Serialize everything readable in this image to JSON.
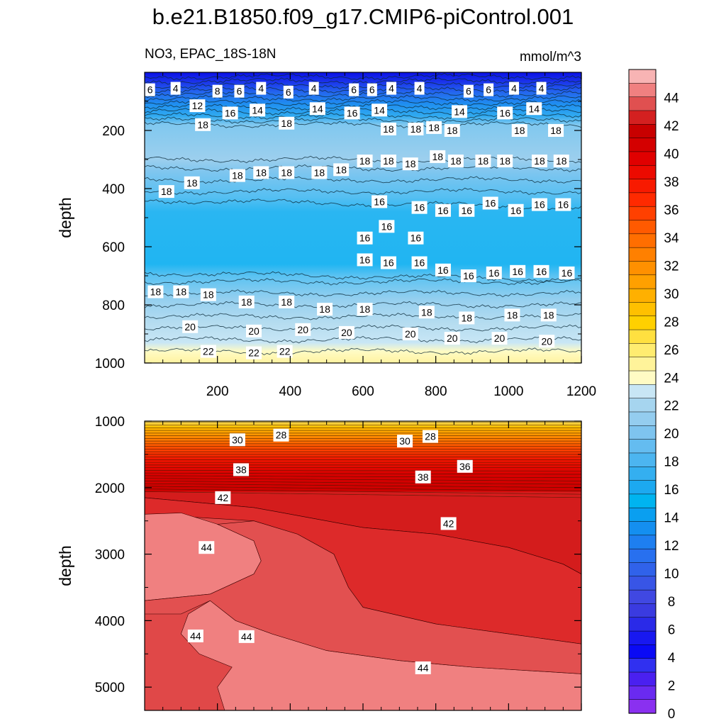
{
  "title": "b.e21.B1850.f09_g17.CMIP6-piControl.001",
  "panel_left_label": "NO3, EPAC_18S-18N",
  "panel_right_label": "mmol/m^3",
  "colors": {
    "deep_blue": "#0a10e6",
    "mid_blue": "#1f8ff0",
    "cyan": "#00b4f0",
    "light_blue": "#46c3f5",
    "pale_blue": "#a6d5ef",
    "yellow_pale": "#fffbc4",
    "orange": "#ffa000",
    "red": "#cc0000",
    "salmon": "#f08080"
  },
  "chart_data": [
    {
      "type": "heatmap",
      "panel": "upper",
      "variable": "NO3",
      "region": "EPAC_18S-18N",
      "units": "mmol/m^3",
      "ylabel": "depth",
      "xlabel": "",
      "xlim": [
        0,
        1200
      ],
      "ylim": [
        0,
        1000
      ],
      "y_inverted": true,
      "xticks": [
        200,
        400,
        600,
        800,
        1000,
        1200
      ],
      "yticks": [
        200,
        400,
        600,
        800,
        1000
      ],
      "layers": [
        {
          "depth_top": 0,
          "depth_bottom": 25,
          "value": 2
        },
        {
          "depth_top": 25,
          "depth_bottom": 60,
          "value": 4
        },
        {
          "depth_top": 60,
          "depth_bottom": 100,
          "value": 8
        },
        {
          "depth_top": 100,
          "depth_bottom": 140,
          "value": 12
        },
        {
          "depth_top": 140,
          "depth_bottom": 175,
          "value": 15
        },
        {
          "depth_top": 175,
          "depth_bottom": 300,
          "value": 18
        },
        {
          "depth_top": 300,
          "depth_bottom": 430,
          "value": 17
        },
        {
          "depth_top": 430,
          "depth_bottom": 670,
          "value": 15
        },
        {
          "depth_top": 670,
          "depth_bottom": 760,
          "value": 17
        },
        {
          "depth_top": 760,
          "depth_bottom": 860,
          "value": 19
        },
        {
          "depth_top": 860,
          "depth_bottom": 940,
          "value": 21
        },
        {
          "depth_top": 940,
          "depth_bottom": 1000,
          "value": 22
        }
      ],
      "contour_labels": [
        {
          "x": 15,
          "depth": 60,
          "text": "6"
        },
        {
          "x": 85,
          "depth": 55,
          "text": "4"
        },
        {
          "x": 200,
          "depth": 65,
          "text": "8"
        },
        {
          "x": 260,
          "depth": 65,
          "text": "6"
        },
        {
          "x": 320,
          "depth": 55,
          "text": "4"
        },
        {
          "x": 395,
          "depth": 68,
          "text": "6"
        },
        {
          "x": 465,
          "depth": 55,
          "text": "4"
        },
        {
          "x": 575,
          "depth": 60,
          "text": "6"
        },
        {
          "x": 625,
          "depth": 60,
          "text": "6"
        },
        {
          "x": 678,
          "depth": 55,
          "text": "4"
        },
        {
          "x": 755,
          "depth": 55,
          "text": "4"
        },
        {
          "x": 890,
          "depth": 65,
          "text": "6"
        },
        {
          "x": 945,
          "depth": 60,
          "text": "6"
        },
        {
          "x": 1015,
          "depth": 55,
          "text": "4"
        },
        {
          "x": 1090,
          "depth": 55,
          "text": "4"
        },
        {
          "x": 145,
          "depth": 115,
          "text": "12"
        },
        {
          "x": 235,
          "depth": 140,
          "text": "16"
        },
        {
          "x": 310,
          "depth": 130,
          "text": "14"
        },
        {
          "x": 475,
          "depth": 125,
          "text": "14"
        },
        {
          "x": 570,
          "depth": 140,
          "text": "16"
        },
        {
          "x": 645,
          "depth": 130,
          "text": "14"
        },
        {
          "x": 865,
          "depth": 135,
          "text": "14"
        },
        {
          "x": 990,
          "depth": 140,
          "text": "16"
        },
        {
          "x": 1070,
          "depth": 125,
          "text": "14"
        },
        {
          "x": 160,
          "depth": 180,
          "text": "18"
        },
        {
          "x": 390,
          "depth": 175,
          "text": "18"
        },
        {
          "x": 670,
          "depth": 195,
          "text": "18"
        },
        {
          "x": 745,
          "depth": 195,
          "text": "18"
        },
        {
          "x": 795,
          "depth": 190,
          "text": "18"
        },
        {
          "x": 845,
          "depth": 200,
          "text": "18"
        },
        {
          "x": 1030,
          "depth": 200,
          "text": "18"
        },
        {
          "x": 1130,
          "depth": 200,
          "text": "18"
        },
        {
          "x": 805,
          "depth": 290,
          "text": "18"
        },
        {
          "x": 855,
          "depth": 305,
          "text": "18"
        },
        {
          "x": 930,
          "depth": 305,
          "text": "18"
        },
        {
          "x": 990,
          "depth": 305,
          "text": "18"
        },
        {
          "x": 1085,
          "depth": 305,
          "text": "18"
        },
        {
          "x": 1145,
          "depth": 305,
          "text": "18"
        },
        {
          "x": 605,
          "depth": 305,
          "text": "18"
        },
        {
          "x": 670,
          "depth": 305,
          "text": "18"
        },
        {
          "x": 730,
          "depth": 315,
          "text": "18"
        },
        {
          "x": 255,
          "depth": 355,
          "text": "18"
        },
        {
          "x": 320,
          "depth": 345,
          "text": "18"
        },
        {
          "x": 390,
          "depth": 345,
          "text": "18"
        },
        {
          "x": 480,
          "depth": 345,
          "text": "18"
        },
        {
          "x": 540,
          "depth": 335,
          "text": "18"
        },
        {
          "x": 130,
          "depth": 380,
          "text": "18"
        },
        {
          "x": 60,
          "depth": 410,
          "text": "18"
        },
        {
          "x": 645,
          "depth": 445,
          "text": "16"
        },
        {
          "x": 755,
          "depth": 465,
          "text": "16"
        },
        {
          "x": 820,
          "depth": 475,
          "text": "16"
        },
        {
          "x": 885,
          "depth": 475,
          "text": "16"
        },
        {
          "x": 950,
          "depth": 450,
          "text": "16"
        },
        {
          "x": 1020,
          "depth": 475,
          "text": "16"
        },
        {
          "x": 1085,
          "depth": 455,
          "text": "16"
        },
        {
          "x": 1150,
          "depth": 455,
          "text": "16"
        },
        {
          "x": 665,
          "depth": 530,
          "text": "16"
        },
        {
          "x": 605,
          "depth": 570,
          "text": "16"
        },
        {
          "x": 745,
          "depth": 570,
          "text": "16"
        },
        {
          "x": 605,
          "depth": 645,
          "text": "16"
        },
        {
          "x": 670,
          "depth": 655,
          "text": "16"
        },
        {
          "x": 755,
          "depth": 655,
          "text": "16"
        },
        {
          "x": 820,
          "depth": 680,
          "text": "16"
        },
        {
          "x": 890,
          "depth": 700,
          "text": "16"
        },
        {
          "x": 960,
          "depth": 690,
          "text": "16"
        },
        {
          "x": 1025,
          "depth": 685,
          "text": "16"
        },
        {
          "x": 1090,
          "depth": 685,
          "text": "16"
        },
        {
          "x": 1160,
          "depth": 690,
          "text": "16"
        },
        {
          "x": 30,
          "depth": 755,
          "text": "18"
        },
        {
          "x": 100,
          "depth": 755,
          "text": "18"
        },
        {
          "x": 175,
          "depth": 765,
          "text": "18"
        },
        {
          "x": 280,
          "depth": 790,
          "text": "18"
        },
        {
          "x": 390,
          "depth": 790,
          "text": "18"
        },
        {
          "x": 495,
          "depth": 815,
          "text": "18"
        },
        {
          "x": 605,
          "depth": 815,
          "text": "18"
        },
        {
          "x": 775,
          "depth": 825,
          "text": "18"
        },
        {
          "x": 885,
          "depth": 845,
          "text": "18"
        },
        {
          "x": 1010,
          "depth": 835,
          "text": "18"
        },
        {
          "x": 1110,
          "depth": 835,
          "text": "18"
        },
        {
          "x": 125,
          "depth": 875,
          "text": "20"
        },
        {
          "x": 300,
          "depth": 890,
          "text": "20"
        },
        {
          "x": 435,
          "depth": 885,
          "text": "20"
        },
        {
          "x": 555,
          "depth": 895,
          "text": "20"
        },
        {
          "x": 730,
          "depth": 900,
          "text": "20"
        },
        {
          "x": 845,
          "depth": 915,
          "text": "20"
        },
        {
          "x": 975,
          "depth": 915,
          "text": "20"
        },
        {
          "x": 1105,
          "depth": 925,
          "text": "20"
        },
        {
          "x": 175,
          "depth": 960,
          "text": "22"
        },
        {
          "x": 300,
          "depth": 965,
          "text": "22"
        },
        {
          "x": 385,
          "depth": 960,
          "text": "22"
        }
      ]
    },
    {
      "type": "heatmap",
      "panel": "lower",
      "variable": "NO3",
      "units": "mmol/m^3",
      "ylabel": "depth",
      "xlabel": "",
      "xlim": [
        0,
        1200
      ],
      "ylim": [
        1000,
        5350
      ],
      "y_inverted": true,
      "yticks": [
        1000,
        2000,
        3000,
        4000,
        5000
      ],
      "layers": [
        {
          "depth_top": 1000,
          "depth_bottom": 1200,
          "value": 25
        },
        {
          "depth_top": 1200,
          "depth_bottom": 1500,
          "value": 30
        },
        {
          "depth_top": 1500,
          "depth_bottom": 1800,
          "value": 36
        },
        {
          "depth_top": 1800,
          "depth_bottom": 2100,
          "value": 40
        },
        {
          "depth_top": 2100,
          "depth_bottom": 3300,
          "value": 42
        },
        {
          "depth_top": 3300,
          "depth_bottom": 4500,
          "value": 43
        },
        {
          "depth_top": 4500,
          "depth_bottom": 5350,
          "value": 44
        }
      ],
      "contour_labels": [
        {
          "x": 255,
          "depth": 1280,
          "text": "30"
        },
        {
          "x": 375,
          "depth": 1210,
          "text": "28"
        },
        {
          "x": 715,
          "depth": 1300,
          "text": "30"
        },
        {
          "x": 785,
          "depth": 1230,
          "text": "28"
        },
        {
          "x": 265,
          "depth": 1730,
          "text": "38"
        },
        {
          "x": 765,
          "depth": 1840,
          "text": "38"
        },
        {
          "x": 880,
          "depth": 1680,
          "text": "36"
        },
        {
          "x": 215,
          "depth": 2150,
          "text": "42"
        },
        {
          "x": 835,
          "depth": 2540,
          "text": "42"
        },
        {
          "x": 170,
          "depth": 2900,
          "text": "44"
        },
        {
          "x": 140,
          "depth": 4230,
          "text": "44"
        },
        {
          "x": 280,
          "depth": 4240,
          "text": "44"
        },
        {
          "x": 765,
          "depth": 4710,
          "text": "44"
        }
      ]
    }
  ],
  "colorbar": {
    "labels": [
      "44",
      "42",
      "40",
      "38",
      "36",
      "34",
      "32",
      "30",
      "28",
      "26",
      "24",
      "22",
      "20",
      "18",
      "16",
      "14",
      "12",
      "10",
      "8",
      "6",
      "4",
      "2",
      "0"
    ],
    "levels_min": 0,
    "levels_max": 46,
    "step": 1,
    "colors_top_to_bottom": [
      "#f8b4b4",
      "#f08080",
      "#e05050",
      "#d42020",
      "#c80000",
      "#d40000",
      "#e00000",
      "#ec0a00",
      "#f81a00",
      "#ff2a00",
      "#ff4000",
      "#ff5a00",
      "#ff6e00",
      "#ff8000",
      "#ff9000",
      "#ffa000",
      "#ffb000",
      "#ffc000",
      "#ffd000",
      "#ffe040",
      "#ffec70",
      "#fff39a",
      "#fffbc4",
      "#c8e6f5",
      "#a6d5ef",
      "#94cdef",
      "#7ec4ef",
      "#64bcf0",
      "#4cb5f0",
      "#34aff0",
      "#1ca9f0",
      "#00b4f0",
      "#0a9ff0",
      "#148ff0",
      "#1e7ff0",
      "#2870ef",
      "#3062ea",
      "#3855e6",
      "#4048e2",
      "#3a3be0",
      "#2a2ae8",
      "#1818f0",
      "#0a0af5",
      "#3030f0",
      "#4a20f0",
      "#6a2af0",
      "#8a30f0"
    ]
  }
}
